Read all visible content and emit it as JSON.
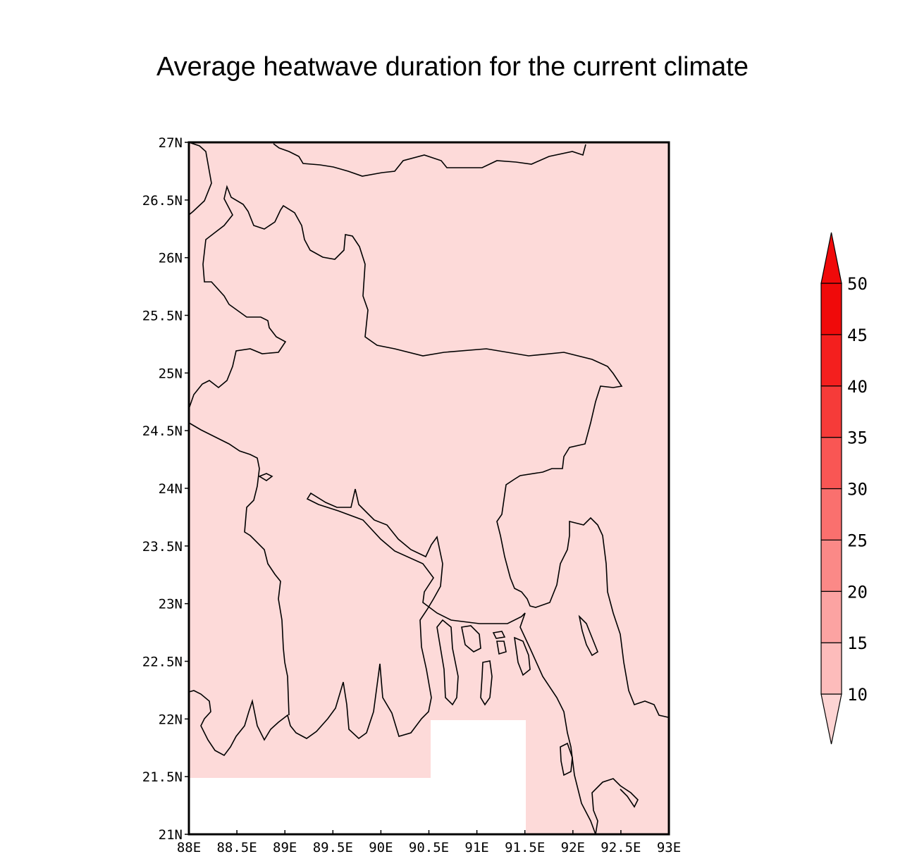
{
  "title": "Average heatwave duration for the current climate",
  "colors": {
    "field": "#fddad9",
    "missing": "#ffffff",
    "outline": "#000000",
    "colorbar": [
      "#fdd4d3",
      "#fdbcbb",
      "#fca3a2",
      "#fb8987",
      "#fa706e",
      "#f95654",
      "#f63b39",
      "#f41f1e",
      "#f00a0a"
    ]
  },
  "map": {
    "lon_ticks": [
      "88E",
      "88.5E",
      "89E",
      "89.5E",
      "90E",
      "90.5E",
      "91E",
      "91.5E",
      "92E",
      "92.5E",
      "93E"
    ],
    "lat_ticks": [
      "21N",
      "21.5N",
      "22N",
      "22.5N",
      "23N",
      "23.5N",
      "24N",
      "24.5N",
      "25N",
      "25.5N",
      "26N",
      "26.5N",
      "27N"
    ],
    "lon_range": [
      88,
      93
    ],
    "lat_range": [
      21,
      27
    ],
    "uniform_value_class": "10-15",
    "missing_regions": "Bay of Bengal, south of 21.5N (88E-90.5E) and south of 22N (90.5E-91.5E)"
  },
  "colorbar": {
    "levels": [
      "10",
      "15",
      "20",
      "25",
      "30",
      "35",
      "40",
      "45",
      "50"
    ],
    "triangles": "both ends"
  }
}
